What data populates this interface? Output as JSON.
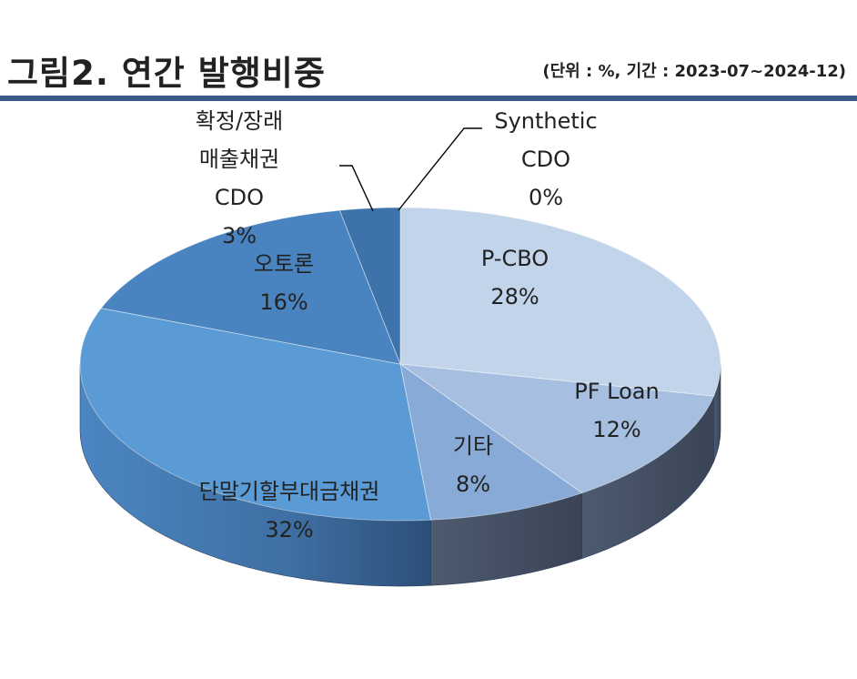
{
  "header": {
    "title": "그림2. 연간 발행비중",
    "unit_note": "(단위 : %, 기간 : 2023-07~2024-12)"
  },
  "chart_data": {
    "type": "pie",
    "title": "그림2. 연간 발행비중",
    "slices": [
      {
        "label": "Synthetic CDO",
        "lines": [
          "Synthetic",
          "CDO"
        ],
        "value": 0,
        "display": "0%",
        "color": "#3b6ea5"
      },
      {
        "label": "P-CBO",
        "lines": [
          "P-CBO"
        ],
        "value": 28,
        "display": "28%",
        "color": "#c2d4ea"
      },
      {
        "label": "PF Loan",
        "lines": [
          "PF Loan"
        ],
        "value": 12,
        "display": "12%",
        "color": "#a6bfe0"
      },
      {
        "label": "기타",
        "lines": [
          "기타"
        ],
        "value": 8,
        "display": "8%",
        "color": "#88aad6"
      },
      {
        "label": "단말기할부대금채권",
        "lines": [
          "단말기할부대금채권"
        ],
        "value": 32,
        "display": "32%",
        "color": "#5b9bd5"
      },
      {
        "label": "오토론",
        "lines": [
          "오토론"
        ],
        "value": 16,
        "display": "16%",
        "color": "#4a84c0"
      },
      {
        "label": "확정/장래매출채권 CDO",
        "lines": [
          "확정/장래",
          "매출채권",
          "CDO"
        ],
        "value": 3,
        "display": "3%",
        "color": "#3d72aa"
      }
    ]
  }
}
